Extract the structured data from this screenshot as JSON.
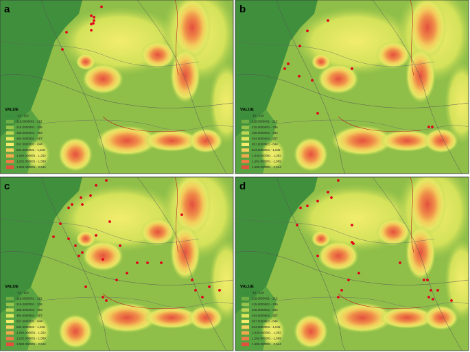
{
  "panels": [
    {
      "label": "a"
    },
    {
      "label": "b"
    },
    {
      "label": "c"
    },
    {
      "label": "d"
    }
  ],
  "legend": {
    "title": "VALUE",
    "items": [
      {
        "label": "-12 - 118",
        "color": "#3a8f3c"
      },
      {
        "label": "118.0000001 - 215",
        "color": "#6fae45"
      },
      {
        "label": "215.0000001 - 336",
        "color": "#97c34b"
      },
      {
        "label": "336.0000001 - 484",
        "color": "#bcd552"
      },
      {
        "label": "484.0000001 - 657",
        "color": "#dce55c"
      },
      {
        "label": "657.0000001 - 844",
        "color": "#f2ed6c"
      },
      {
        "label": "844.0000001 - 1,046",
        "color": "#f3cf5c"
      },
      {
        "label": "1,046.000001 - 1,262",
        "color": "#f1a94e"
      },
      {
        "label": "1,262.000001 - 1,589",
        "color": "#ec7c45"
      },
      {
        "label": "1,589.000001 - 2,544",
        "color": "#e4503e"
      }
    ]
  }
}
